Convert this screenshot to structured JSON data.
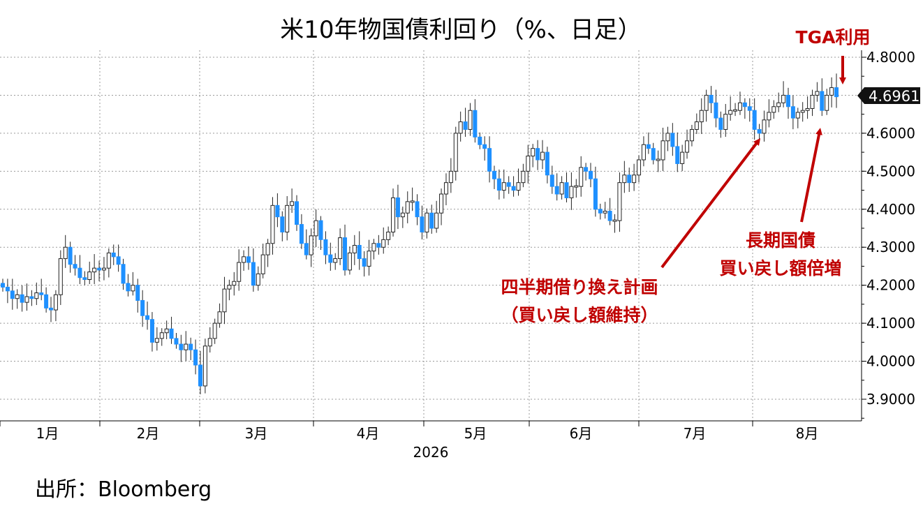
{
  "chart_data": {
    "type": "candlestick",
    "title": "米10年物国債利回り（%、日足）",
    "xlabel": "2026",
    "ylabel": "",
    "ylim": [
      3.85,
      4.82
    ],
    "yticks": [
      "3.9000",
      "4.0000",
      "4.1000",
      "4.2000",
      "4.3000",
      "4.4000",
      "4.5000",
      "4.6000",
      "4.7000",
      "4.8000"
    ],
    "ytick_values": [
      3.9,
      4.0,
      4.1,
      4.2,
      4.3,
      4.4,
      4.5,
      4.6,
      4.7,
      4.8
    ],
    "months": [
      "1月",
      "2月",
      "3月",
      "4月",
      "5月",
      "6月",
      "7月",
      "8月"
    ],
    "year": "2026",
    "last_value": "4.6961",
    "colors": {
      "up": "#ffffff",
      "down": "#1E90FF",
      "annotation": "#C00000",
      "last_bg": "#111111"
    },
    "closes": [
      4.195,
      4.185,
      4.165,
      4.175,
      4.155,
      4.17,
      4.165,
      4.18,
      4.175,
      4.14,
      4.135,
      4.175,
      4.27,
      4.3,
      4.255,
      4.245,
      4.22,
      4.215,
      4.235,
      4.245,
      4.24,
      4.245,
      4.285,
      4.275,
      4.255,
      4.205,
      4.185,
      4.2,
      4.16,
      4.12,
      4.11,
      4.05,
      4.06,
      4.075,
      4.085,
      4.06,
      4.045,
      4.03,
      4.045,
      4.03,
      3.99,
      3.935,
      4.04,
      4.06,
      4.1,
      4.13,
      4.19,
      4.2,
      4.21,
      4.26,
      4.275,
      4.26,
      4.2,
      4.23,
      4.28,
      4.31,
      4.41,
      4.38,
      4.34,
      4.41,
      4.42,
      4.36,
      4.31,
      4.28,
      4.33,
      4.37,
      4.32,
      4.28,
      4.26,
      4.27,
      4.325,
      4.24,
      4.285,
      4.305,
      4.27,
      4.25,
      4.29,
      4.31,
      4.3,
      4.32,
      4.34,
      4.43,
      4.38,
      4.39,
      4.42,
      4.42,
      4.38,
      4.34,
      4.39,
      4.35,
      4.39,
      4.44,
      4.47,
      4.5,
      4.6,
      4.63,
      4.61,
      4.66,
      4.59,
      4.57,
      4.56,
      4.5,
      4.48,
      4.45,
      4.47,
      4.46,
      4.45,
      4.47,
      4.5,
      4.54,
      4.56,
      4.53,
      4.55,
      4.49,
      4.46,
      4.44,
      4.47,
      4.43,
      4.46,
      4.46,
      4.51,
      4.5,
      4.48,
      4.4,
      4.39,
      4.395,
      4.37,
      4.37,
      4.47,
      4.49,
      4.47,
      4.49,
      4.53,
      4.57,
      4.56,
      4.53,
      4.53,
      4.58,
      4.6,
      4.565,
      4.52,
      4.55,
      4.58,
      4.61,
      4.63,
      4.66,
      4.7,
      4.68,
      4.64,
      4.61,
      4.65,
      4.66,
      4.66,
      4.68,
      4.67,
      4.66,
      4.61,
      4.6,
      4.635,
      4.655,
      4.67,
      4.68,
      4.7,
      4.67,
      4.64,
      4.655,
      4.66,
      4.665,
      4.7,
      4.71,
      4.66,
      4.7,
      4.72,
      4.696
    ],
    "annotations": [
      {
        "text": "TGA利用"
      },
      {
        "text": "長期国債"
      },
      {
        "text": "買い戻し額倍増"
      },
      {
        "text": "四半期借り換え計画"
      },
      {
        "text": "（買い戻し額維持）"
      }
    ],
    "source": "出所：Bloomberg"
  }
}
